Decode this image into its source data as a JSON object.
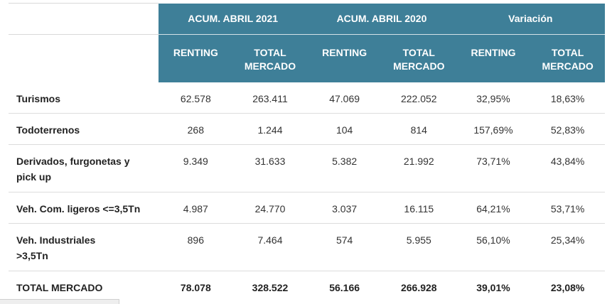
{
  "header": {
    "groups": [
      "ACUM. ABRIL 2021",
      "ACUM. ABRIL 2020",
      "Variación"
    ],
    "subcols": [
      "RENTING",
      "TOTAL MERCADO",
      "RENTING",
      "TOTAL MERCADO",
      "RENTING",
      "TOTAL MERCADO"
    ]
  },
  "rows": [
    {
      "label": "Turismos",
      "values": [
        "62.578",
        "263.411",
        "47.069",
        "222.052",
        "32,95%",
        "18,63%"
      ]
    },
    {
      "label": "Todoterrenos",
      "values": [
        "268",
        "1.244",
        "104",
        "814",
        "157,69%",
        "52,83%"
      ]
    },
    {
      "label": "Derivados, furgonetas y pick up",
      "values": [
        "9.349",
        "31.633",
        "5.382",
        "21.992",
        "73,71%",
        "43,84%"
      ]
    },
    {
      "label": "Veh. Com. ligeros <=3,5Tn",
      "values": [
        "4.987",
        "24.770",
        "3.037",
        "16.115",
        "64,21%",
        "53,71%"
      ]
    },
    {
      "label": "Veh. Industriales >3,5Tn",
      "values": [
        "896",
        "7.464",
        "574",
        "5.955",
        "56,10%",
        "25,34%"
      ]
    },
    {
      "label": "TOTAL MERCADO",
      "values": [
        "78.078",
        "328.522",
        "56.166",
        "266.928",
        "39,01%",
        "23,08%"
      ]
    }
  ]
}
